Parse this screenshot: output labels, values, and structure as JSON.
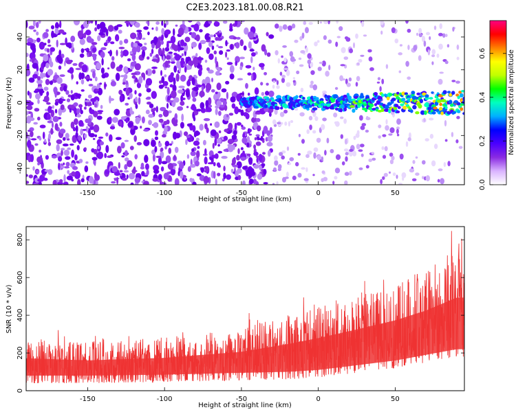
{
  "title": "C2E3.2023.181.00.08.R21",
  "chart_data": [
    {
      "type": "heatmap",
      "xlabel": "Height of straight line (km)",
      "ylabel": "Frequency (Hz)",
      "xlim": [
        -190,
        95
      ],
      "ylim": [
        -50,
        50
      ],
      "xticks": [
        -150,
        -100,
        -50,
        0,
        50
      ],
      "yticks": [
        -40,
        -20,
        0,
        20,
        40
      ],
      "colorbar": {
        "label": "Normalized spectral amplitude",
        "range": [
          0,
          0.75
        ],
        "ticks": [
          0.0,
          0.2,
          0.4,
          0.6
        ],
        "colors": [
          "#ffffff",
          "#d9b3ff",
          "#8a2be2",
          "#4b00ff",
          "#0000ff",
          "#00b0ff",
          "#00ffc0",
          "#00ff00",
          "#c0ff00",
          "#ffff00",
          "#ff8000",
          "#ff0000",
          "#ff0080"
        ]
      },
      "features": {
        "signal_band_center_hz": 0,
        "signal_band_start_km": -50,
        "noise_dense_below_km": -30
      }
    },
    {
      "type": "line",
      "xlabel": "Height of straight line (km)",
      "ylabel": "SNR (10 * v/v)",
      "xlim": [
        -190,
        95
      ],
      "ylim": [
        0,
        870
      ],
      "xticks": [
        -150,
        -100,
        -50,
        0,
        50
      ],
      "yticks": [
        0,
        200,
        400,
        600,
        800
      ],
      "color": "#ee3333",
      "envelope": {
        "x": [
          -190,
          -150,
          -100,
          -50,
          -20,
          0,
          20,
          50,
          70,
          90
        ],
        "low": [
          40,
          40,
          45,
          55,
          60,
          70,
          90,
          120,
          150,
          180
        ],
        "high": [
          280,
          260,
          280,
          330,
          400,
          450,
          500,
          580,
          650,
          750
        ]
      }
    }
  ]
}
